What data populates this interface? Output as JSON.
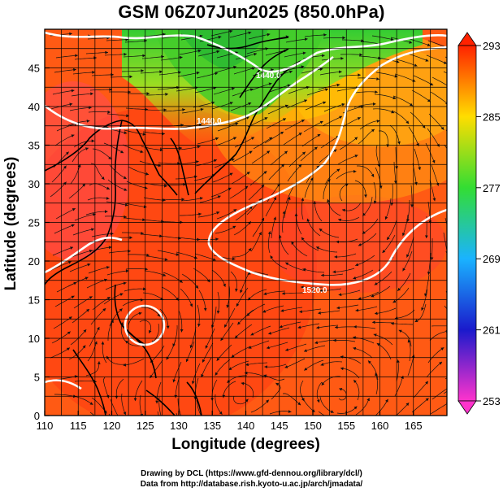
{
  "chart_data": {
    "type": "heatmap",
    "title": "GSM 06Z07Jun2025 (850.0hPa)",
    "xlabel": "Longitude (degrees)",
    "ylabel": "Latitude  (degrees)",
    "xlim": [
      110,
      170
    ],
    "ylim": [
      0,
      50
    ],
    "x_ticks": [
      110,
      115,
      120,
      125,
      130,
      135,
      140,
      145,
      150,
      155,
      160,
      165
    ],
    "y_ticks": [
      0,
      5,
      10,
      15,
      20,
      25,
      30,
      35,
      40,
      45
    ],
    "grid": true,
    "variable": "temperature (K), shaded",
    "overlays": [
      "streamlines",
      "geopotential height contours (white)",
      "coastlines"
    ],
    "colorbar": {
      "range": [
        253,
        293
      ],
      "ticks": [
        253,
        261,
        269,
        277,
        285,
        293
      ],
      "colors": [
        "#ff33cc",
        "#1a1acc",
        "#1ab3ff",
        "#33dd33",
        "#ffdd00",
        "#ff2200"
      ]
    },
    "contour_labels": [
      {
        "text": "1440.0",
        "lon": 140,
        "lat": 40
      },
      {
        "text": "1440.0",
        "lon": 143,
        "lat": 46
      },
      {
        "text": "1520.0",
        "lon": 147,
        "lat": 19
      }
    ],
    "credit": [
      "Drawing by DCL (https://www.gfd-dennou.org/library/dcl/)",
      "Data from http://database.rish.kyoto-u.ac.jp/arch/jmadata/"
    ]
  }
}
